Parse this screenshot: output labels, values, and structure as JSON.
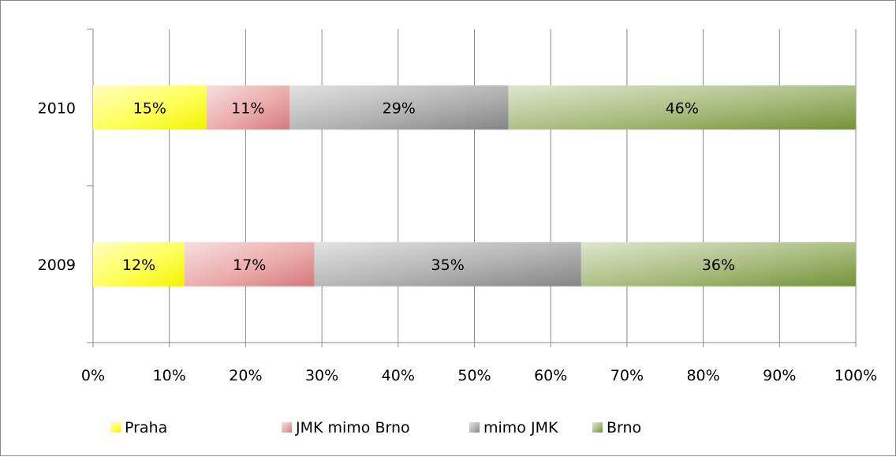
{
  "chart_data": {
    "type": "bar",
    "orientation": "horizontal",
    "stacked": "percent",
    "categories": [
      "2010",
      "2009"
    ],
    "series": [
      {
        "name": "Praha",
        "values": [
          15,
          12
        ],
        "labels": [
          "15%",
          "12%"
        ],
        "color": "#ffff00"
      },
      {
        "name": "JMK mimo Brno",
        "values": [
          11,
          17
        ],
        "labels": [
          "11%",
          "17%"
        ],
        "color": "#e07f7f"
      },
      {
        "name": "mimo JMK",
        "values": [
          29,
          35
        ],
        "labels": [
          "29%",
          "35%"
        ],
        "color": "#8c8c8c"
      },
      {
        "name": "Brno",
        "values": [
          46,
          36
        ],
        "labels": [
          "46%",
          "36%"
        ],
        "color": "#7a9a3c"
      }
    ],
    "x_ticks": [
      "0%",
      "10%",
      "20%",
      "30%",
      "40%",
      "50%",
      "60%",
      "70%",
      "80%",
      "90%",
      "100%"
    ],
    "xlim": [
      0,
      100
    ],
    "title": "",
    "xlabel": "",
    "ylabel": "",
    "grid": "vertical",
    "legend": "bottom"
  }
}
